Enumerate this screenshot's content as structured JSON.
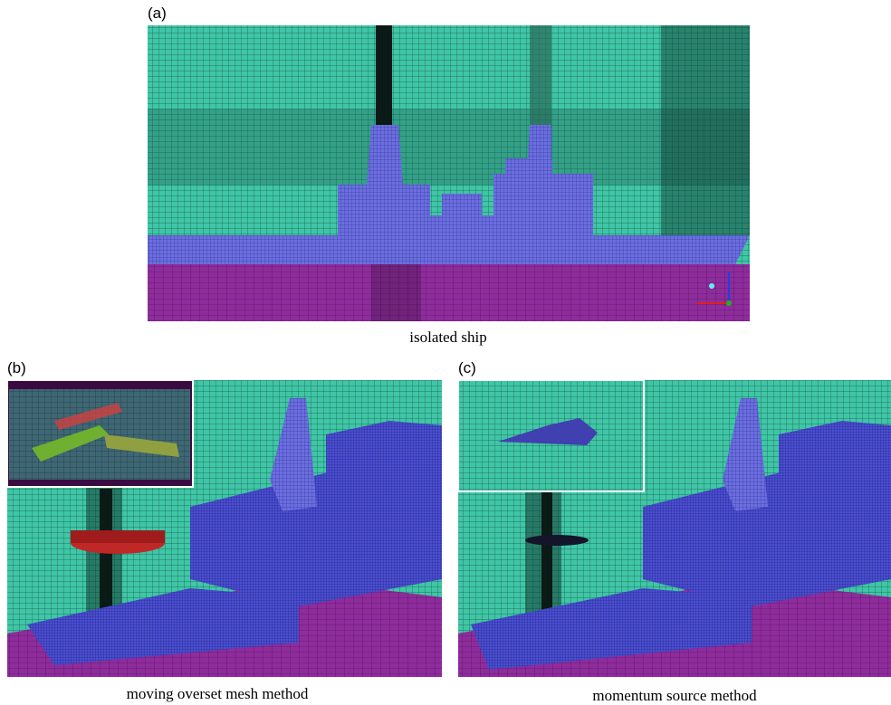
{
  "panels": [
    {
      "label": "(a)",
      "caption": "isolated ship"
    },
    {
      "label": "(b)",
      "caption": "moving overset mesh method"
    },
    {
      "label": "(c)",
      "caption": "momentum source method"
    }
  ]
}
